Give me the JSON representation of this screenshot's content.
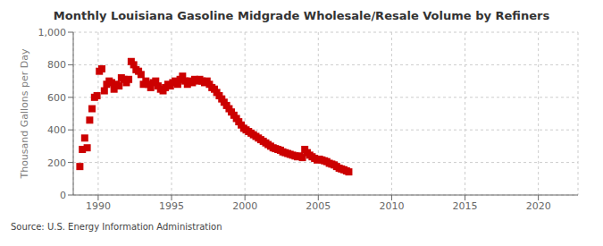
{
  "chart_data": {
    "type": "scatter",
    "title": "Monthly Louisiana Gasoline Midgrade Wholesale/Resale Volume by Refiners",
    "ylabel": "Thousand Gallons per Day",
    "annotation": "Source: U.S. Energy Information Administration",
    "color": "#cc0000",
    "marker": "square",
    "grid": true,
    "xlim": [
      1988.3,
      2022.7
    ],
    "ylim": [
      0,
      1000
    ],
    "xticks": [
      1990,
      1995,
      2000,
      2005,
      2010,
      2015,
      2020
    ],
    "yticks": [
      0,
      200,
      400,
      600,
      800,
      {
        "value": 1000,
        "label": "1,000"
      }
    ],
    "x": [
      1988.75,
      1988.92,
      1989.08,
      1989.25,
      1989.42,
      1989.58,
      1989.75,
      1989.92,
      1990.08,
      1990.25,
      1990.42,
      1990.58,
      1990.75,
      1990.92,
      1991.08,
      1991.25,
      1991.42,
      1991.58,
      1991.75,
      1991.92,
      1992.08,
      1992.25,
      1992.42,
      1992.58,
      1992.75,
      1992.92,
      1993.08,
      1993.25,
      1993.42,
      1993.58,
      1993.75,
      1993.92,
      1994.08,
      1994.25,
      1994.42,
      1994.58,
      1994.75,
      1994.92,
      1995.08,
      1995.25,
      1995.42,
      1995.58,
      1995.75,
      1995.92,
      1996.08,
      1996.25,
      1996.42,
      1996.58,
      1996.75,
      1996.92,
      1997.08,
      1997.25,
      1997.42,
      1997.58,
      1997.75,
      1997.92,
      1998.08,
      1998.25,
      1998.42,
      1998.58,
      1998.75,
      1998.92,
      1999.08,
      1999.25,
      1999.42,
      1999.58,
      1999.75,
      1999.92,
      2000.08,
      2000.25,
      2000.42,
      2000.58,
      2000.75,
      2000.92,
      2001.08,
      2001.25,
      2001.42,
      2001.58,
      2001.75,
      2001.92,
      2002.08,
      2002.25,
      2002.42,
      2002.58,
      2002.75,
      2002.92,
      2003.08,
      2003.25,
      2003.42,
      2003.58,
      2003.75,
      2003.92,
      2004.08,
      2004.25,
      2004.42,
      2004.58,
      2004.75,
      2004.92,
      2005.08,
      2005.25,
      2005.42,
      2005.58,
      2005.75,
      2005.92,
      2006.08,
      2006.25,
      2006.42,
      2006.58,
      2006.75,
      2006.92,
      2007.08
    ],
    "values": [
      175,
      280,
      350,
      290,
      460,
      530,
      600,
      610,
      760,
      775,
      640,
      680,
      700,
      690,
      650,
      680,
      670,
      720,
      710,
      690,
      710,
      820,
      800,
      770,
      760,
      740,
      680,
      700,
      680,
      660,
      690,
      700,
      670,
      650,
      640,
      660,
      680,
      670,
      690,
      700,
      680,
      710,
      730,
      700,
      680,
      700,
      690,
      710,
      700,
      710,
      700,
      690,
      700,
      680,
      660,
      650,
      630,
      610,
      590,
      570,
      550,
      530,
      510,
      490,
      470,
      450,
      430,
      410,
      400,
      390,
      380,
      370,
      360,
      350,
      340,
      330,
      320,
      310,
      300,
      290,
      285,
      280,
      275,
      265,
      260,
      255,
      250,
      245,
      240,
      235,
      240,
      230,
      280,
      260,
      245,
      235,
      225,
      215,
      220,
      215,
      210,
      205,
      195,
      190,
      185,
      175,
      165,
      160,
      155,
      148,
      142
    ]
  }
}
